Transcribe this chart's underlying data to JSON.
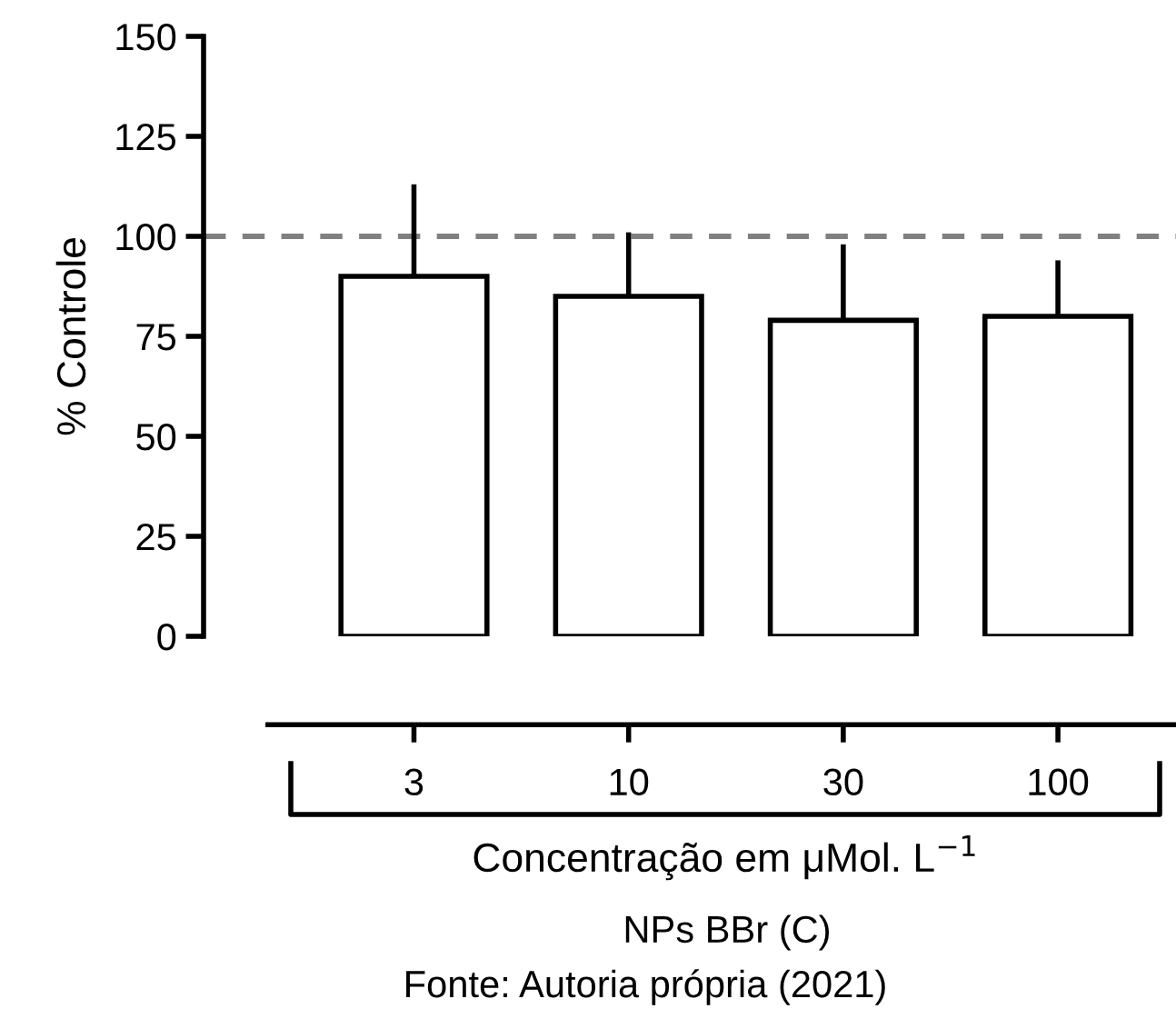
{
  "chart_data": {
    "type": "bar",
    "ylabel": "% Controle",
    "xlabel": "Concentração em μMol. L$^{−1}$",
    "categories": [
      "3",
      "10",
      "30",
      "100"
    ],
    "values": [
      90,
      85,
      79,
      80
    ],
    "errors": [
      [
        90,
        113
      ],
      [
        85,
        101
      ],
      [
        79,
        98
      ],
      [
        80,
        94
      ]
    ],
    "color": "#ffffff",
    "ylim": [
      0,
      150
    ],
    "yticks": [
      0,
      25,
      50,
      75,
      100,
      125,
      150
    ],
    "ref_lines": [
      {
        "axis": "y",
        "value": 100,
        "color": "#808080",
        "line_style": "dashed"
      }
    ],
    "annotations": [
      "NPs BBr (C)",
      "Fonte: Autoria própria (2021)"
    ],
    "grid": false,
    "legend": false
  }
}
